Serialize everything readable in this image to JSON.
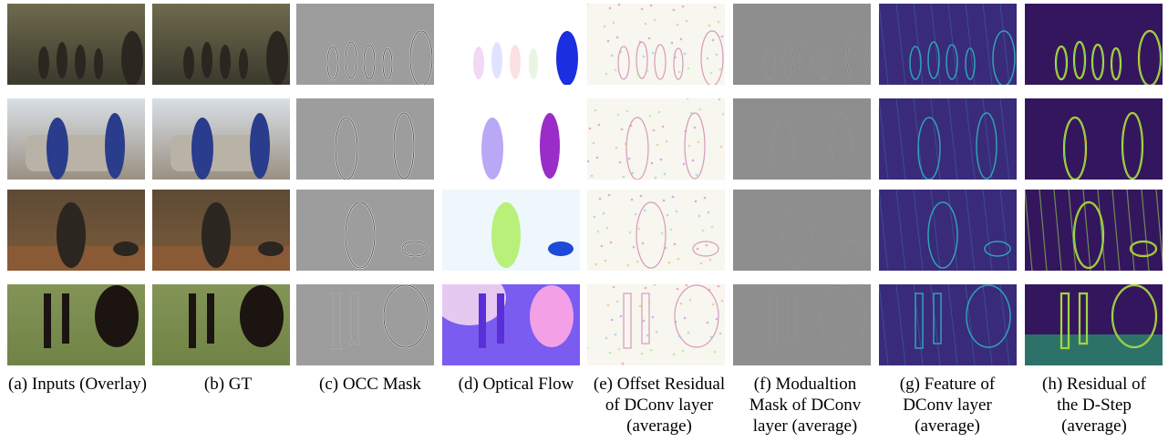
{
  "figure": {
    "columns": [
      {
        "id": "inputs",
        "caption": [
          "(a) Inputs (Overlay)"
        ],
        "style": "photo"
      },
      {
        "id": "gt",
        "caption": [
          "(b) GT"
        ],
        "style": "photo"
      },
      {
        "id": "occ",
        "caption": [
          "(c) OCC Mask"
        ],
        "style": "gray-edge"
      },
      {
        "id": "flow",
        "caption": [
          "(d) Optical Flow"
        ],
        "style": "flow"
      },
      {
        "id": "offset",
        "caption": [
          "(e) Offset Residual",
          "of DConv layer",
          "(average)"
        ],
        "style": "offset"
      },
      {
        "id": "modulation",
        "caption": [
          "(f) Modualtion",
          "Mask of DConv",
          "layer (average)"
        ],
        "style": "gray-soft"
      },
      {
        "id": "feature",
        "caption": [
          "(g) Feature of",
          "DConv layer",
          "(average)"
        ],
        "style": "viridis-dark"
      },
      {
        "id": "residual",
        "caption": [
          "(h) Residual of",
          "the D-Step",
          "(average)"
        ],
        "style": "viridis-bright"
      }
    ],
    "rows": [
      {
        "id": "street-scene"
      },
      {
        "id": "car-scene"
      },
      {
        "id": "store-scene"
      },
      {
        "id": "horse-scene"
      }
    ]
  }
}
